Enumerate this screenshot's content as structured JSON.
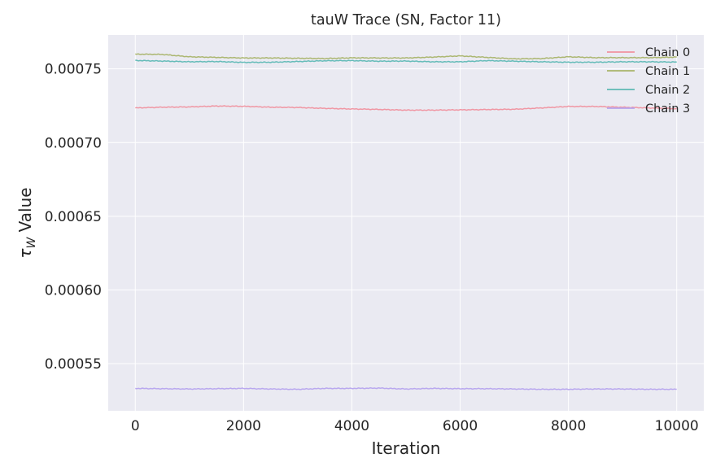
{
  "chart_data": {
    "type": "line",
    "title": "tauW Trace (SN, Factor 11)",
    "xlabel": "Iteration",
    "ylabel_symbol": "τ",
    "ylabel_sub": "W",
    "ylabel_text": " Value",
    "xlim": [
      -500,
      10500
    ],
    "ylim": [
      0.000518,
      0.000773
    ],
    "xticks": [
      0,
      2000,
      4000,
      6000,
      8000,
      10000
    ],
    "xtick_labels": [
      "0",
      "2000",
      "4000",
      "6000",
      "8000",
      "10000"
    ],
    "yticks": [
      0.00055,
      0.0006,
      0.00065,
      0.0007,
      0.00075
    ],
    "ytick_labels": [
      "0.00055",
      "0.00060",
      "0.00065",
      "0.00070",
      "0.00075"
    ],
    "grid": true,
    "legend_position": "top-right",
    "x": [
      0,
      500,
      1000,
      1500,
      2000,
      2500,
      3000,
      3500,
      4000,
      4500,
      5000,
      5500,
      6000,
      6500,
      7000,
      7500,
      8000,
      8500,
      9000,
      9500,
      10000
    ],
    "series": [
      {
        "name": "Chain 0",
        "color": "#f0929f",
        "values": [
          0.0007235,
          0.000724,
          0.0007242,
          0.0007248,
          0.0007246,
          0.000724,
          0.0007238,
          0.0007232,
          0.0007228,
          0.0007225,
          0.000722,
          0.000722,
          0.0007222,
          0.0007224,
          0.0007226,
          0.0007235,
          0.0007245,
          0.0007245,
          0.000724,
          0.0007235,
          0.000723
        ]
      },
      {
        "name": "Chain 1",
        "color": "#a9b46a",
        "values": [
          0.00076,
          0.0007598,
          0.0007582,
          0.0007578,
          0.0007574,
          0.0007574,
          0.0007572,
          0.000757,
          0.0007575,
          0.0007574,
          0.0007574,
          0.000758,
          0.0007588,
          0.0007578,
          0.0007568,
          0.000757,
          0.0007582,
          0.0007576,
          0.0007576,
          0.0007576,
          0.000758
        ]
      },
      {
        "name": "Chain 2",
        "color": "#5fb9b5",
        "values": [
          0.0007557,
          0.0007553,
          0.0007548,
          0.000755,
          0.0007544,
          0.0007545,
          0.000755,
          0.0007555,
          0.0007556,
          0.0007552,
          0.0007553,
          0.0007548,
          0.0007548,
          0.0007556,
          0.0007552,
          0.0007548,
          0.0007545,
          0.0007545,
          0.0007548,
          0.0007548,
          0.0007546
        ]
      },
      {
        "name": "Chain 3",
        "color": "#b6a4ee",
        "values": [
          0.0005332,
          0.000533,
          0.0005328,
          0.000533,
          0.0005332,
          0.0005328,
          0.0005326,
          0.0005332,
          0.0005332,
          0.0005334,
          0.0005328,
          0.0005332,
          0.000533,
          0.000533,
          0.0005328,
          0.0005326,
          0.0005326,
          0.0005328,
          0.0005328,
          0.0005326,
          0.0005326
        ]
      }
    ]
  }
}
